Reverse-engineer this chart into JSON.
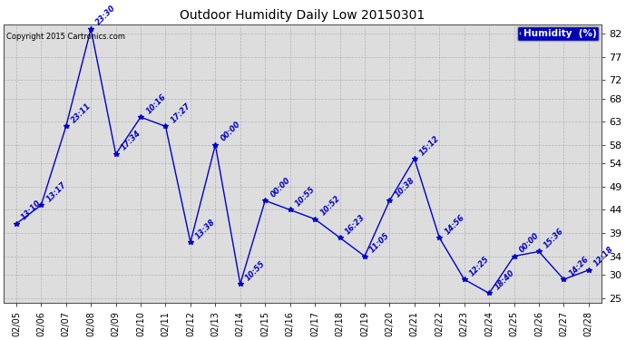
{
  "title": "Outdoor Humidity Daily Low 20150301",
  "copyright_text": "Copyright 2015 Cartronics.com",
  "legend_label": "Humidity  (%)",
  "dates": [
    "02/05",
    "02/06",
    "02/07",
    "02/08",
    "02/09",
    "02/10",
    "02/11",
    "02/12",
    "02/13",
    "02/14",
    "02/15",
    "02/16",
    "02/17",
    "02/18",
    "02/19",
    "02/20",
    "02/21",
    "02/22",
    "02/23",
    "02/24",
    "02/25",
    "02/26",
    "02/27",
    "02/28"
  ],
  "values": [
    41,
    45,
    62,
    83,
    56,
    64,
    62,
    37,
    58,
    28,
    46,
    44,
    42,
    38,
    34,
    46,
    55,
    38,
    29,
    26,
    34,
    35,
    29,
    31
  ],
  "labels": [
    "13:10",
    "13:17",
    "23:11",
    "23:30",
    "17:34",
    "10:16",
    "17:27",
    "13:38",
    "00:00",
    "10:55",
    "00:00",
    "10:55",
    "10:52",
    "16:23",
    "11:05",
    "10:38",
    "15:12",
    "14:56",
    "12:25",
    "18:40",
    "00:00",
    "15:36",
    "14:26",
    "12:18"
  ],
  "ylim": [
    24,
    84
  ],
  "yticks": [
    25,
    30,
    34,
    39,
    44,
    49,
    54,
    58,
    63,
    68,
    72,
    77,
    82
  ],
  "line_color": "#0000cc",
  "marker_color": "#0000cc",
  "bg_color": "#dddddd",
  "fig_bg_color": "#ffffff",
  "grid_color": "#aaaaaa",
  "text_color": "#0000cc",
  "legend_bg": "#0000bb",
  "legend_text_color": "#ffffff",
  "title_color": "#000000",
  "copyright_color": "#000000"
}
